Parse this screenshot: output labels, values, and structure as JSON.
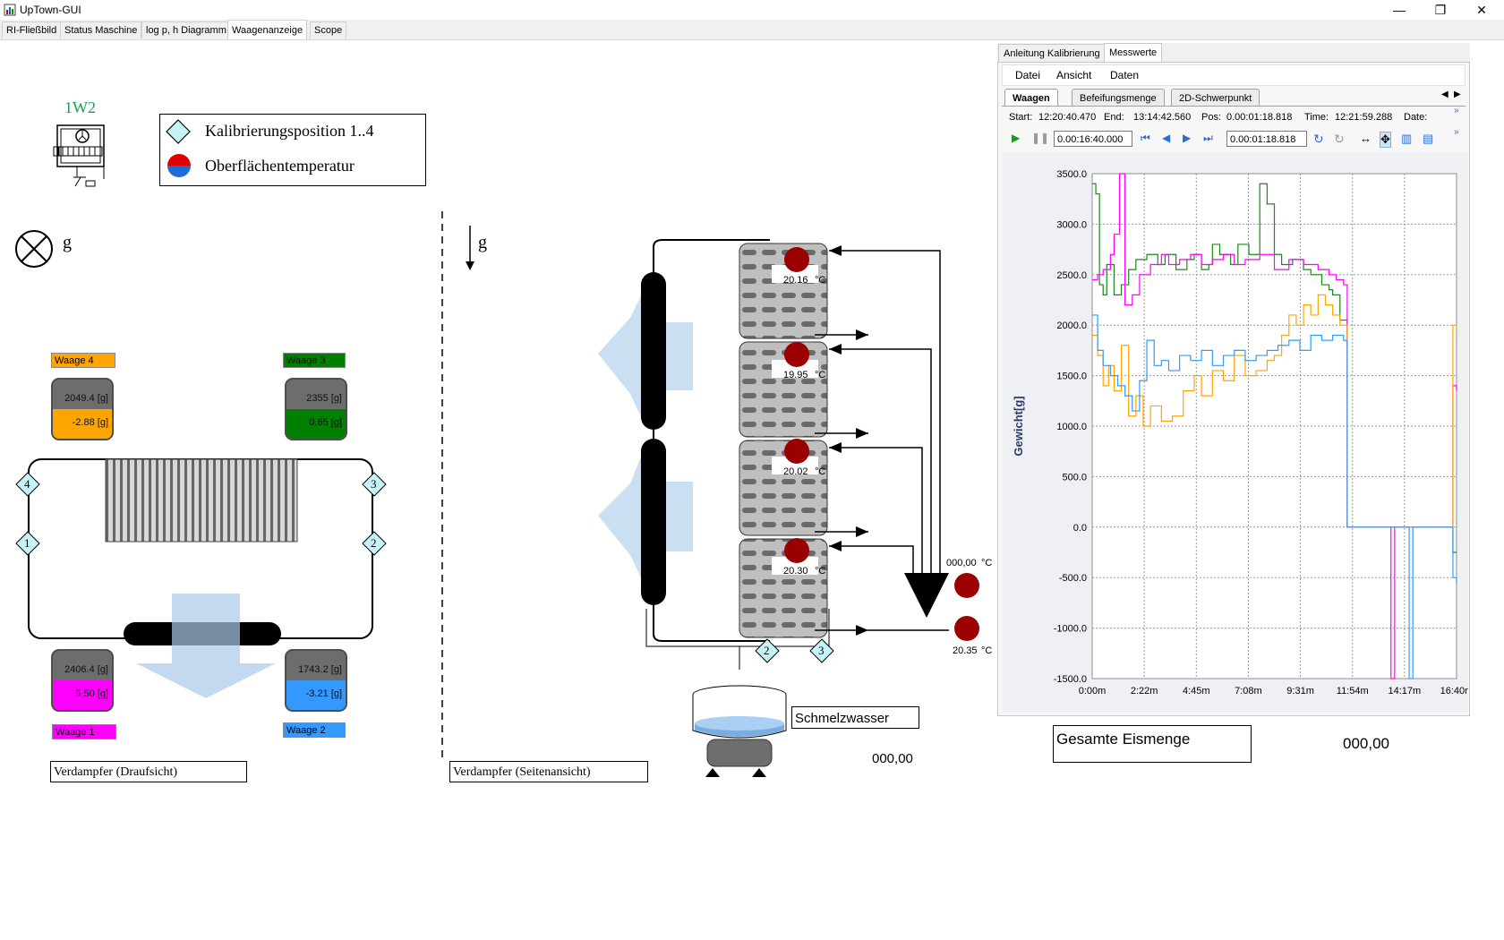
{
  "window": {
    "title": "UpTown-GUI",
    "minimize": "—",
    "maximize": "❐",
    "close": "✕"
  },
  "tabs": [
    {
      "label": "RI-Fließbild"
    },
    {
      "label": "Status Maschine"
    },
    {
      "label": "log p, h Diagramm"
    },
    {
      "label": "Waagenanzeige"
    },
    {
      "label": "Scope"
    }
  ],
  "active_tab": "Waagenanzeige",
  "device": {
    "label": "1W2"
  },
  "legend": {
    "calib": "Kalibrierungsposition 1..4",
    "surface_temp": "Oberflächentemperatur"
  },
  "gravity": {
    "label_left": "g",
    "label_right": "g"
  },
  "scales": [
    {
      "name": "Waage 4",
      "total": "2049.4 [g]",
      "delta": "-2.88 [g]",
      "color": "#ffa500"
    },
    {
      "name": "Waage 3",
      "total": "2355 [g]",
      "delta": "0.65 [g]",
      "color": "#008000"
    },
    {
      "name": "Waage 1",
      "total": "2406.4 [g]",
      "delta": "5.50 [g]",
      "color": "#ff00ff"
    },
    {
      "name": "Waage 2",
      "total": "1743.2 [g]",
      "delta": "-3.21 [g]",
      "color": "#3399ff"
    }
  ],
  "calib_points": [
    "1",
    "2",
    "3",
    "4"
  ],
  "side_calib_points": [
    "2",
    "3"
  ],
  "sensors": [
    {
      "value": "20.16",
      "unit": "°C"
    },
    {
      "value": "19.95",
      "unit": "°C"
    },
    {
      "value": "20.02",
      "unit": "°C"
    },
    {
      "value": "20.30",
      "unit": "°C"
    }
  ],
  "extra_sensors": [
    {
      "value": "000,00",
      "unit": "°C"
    },
    {
      "value": "20.35",
      "unit": "°C"
    }
  ],
  "views": {
    "top": "Verdampfer (Draufsicht)",
    "side": "Verdampfer (Seitenansicht)"
  },
  "meltwater": {
    "label": "Schmelzwasser",
    "value": "000,00"
  },
  "total_ice": {
    "label": "Gesamte Eismenge",
    "value": "000,00"
  },
  "right_panel": {
    "tabs": [
      "Anleitung Kalibrierung",
      "Messwerte"
    ],
    "active_tab": "Messwerte",
    "menu": [
      "Datei",
      "Ansicht",
      "Daten"
    ],
    "subtabs": [
      "Waagen",
      "Befeifungsmenge",
      "2D-Schwerpunkt"
    ],
    "info": {
      "start_label": "Start:",
      "start": "12:20:40.470",
      "end_label": "End:",
      "end": "13:14:42.560",
      "pos_label": "Pos:",
      "pos": "0.00:01:18.818",
      "time_label": "Time:",
      "time": "12:21:59.288",
      "date_label": "Date:"
    },
    "toolbar": {
      "duration": "0.00:16:40.000",
      "position": "0.00:01:18.818"
    }
  },
  "chart_data": {
    "type": "line",
    "title": "",
    "xlabel": "",
    "ylabel": "Gewicht[g]",
    "ylim": [
      -1500,
      3500
    ],
    "xlim": [
      0,
      1000
    ],
    "yticks": [
      "3500.0",
      "3000.0",
      "2500.0",
      "2000.0",
      "1500.0",
      "1000.0",
      "500.0",
      "0.0",
      "-500.0",
      "-1000.0",
      "-1500.0"
    ],
    "xticks": [
      "0:00m",
      "2:22m",
      "4:45m",
      "7:08m",
      "9:31m",
      "11:54m",
      "14:17m",
      "16:40m"
    ],
    "grid": true,
    "series": [
      {
        "color": "#1a8a1a",
        "x": [
          0,
          10,
          20,
          30,
          40,
          60,
          80,
          100,
          120,
          150,
          180,
          200,
          230,
          260,
          280,
          300,
          320,
          330,
          350,
          380,
          400,
          430,
          460,
          480,
          500,
          520,
          550,
          580,
          600,
          630,
          650,
          660,
          680,
          700,
          720,
          730,
          760,
          780,
          800,
          820,
          850,
          880,
          900,
          930,
          950,
          980,
          990,
          1000
        ],
        "y": [
          3400,
          3300,
          2400,
          2300,
          2600,
          2300,
          2400,
          2550,
          2650,
          2700,
          2600,
          2700,
          2550,
          2650,
          2700,
          2550,
          2600,
          2800,
          2700,
          2600,
          2800,
          2700,
          3400,
          3200,
          2700,
          2600,
          2650,
          2550,
          2500,
          2400,
          2350,
          2300,
          2050,
          0,
          0,
          0,
          0,
          0,
          0,
          0,
          0,
          0,
          0,
          0,
          0,
          0,
          -250,
          -250
        ]
      },
      {
        "color": "#ff00ff",
        "x": [
          0,
          15,
          30,
          50,
          60,
          75,
          90,
          110,
          130,
          160,
          190,
          210,
          240,
          270,
          300,
          330,
          360,
          390,
          420,
          460,
          500,
          540,
          580,
          620,
          650,
          670,
          690,
          700,
          720,
          750,
          780,
          810,
          820,
          830,
          850,
          880,
          900,
          930,
          950,
          970,
          980,
          990,
          1000
        ],
        "y": [
          2450,
          2500,
          2550,
          2700,
          2900,
          3500,
          2200,
          2300,
          2500,
          2600,
          2700,
          2600,
          2650,
          2700,
          2600,
          2650,
          2700,
          2600,
          2650,
          2700,
          2550,
          2650,
          2600,
          2550,
          2500,
          2450,
          2400,
          0,
          0,
          0,
          0,
          0,
          -1500,
          0,
          0,
          0,
          0,
          0,
          0,
          0,
          0,
          1400,
          1350
        ]
      },
      {
        "color": "#ffa500",
        "x": [
          0,
          15,
          30,
          45,
          60,
          80,
          100,
          120,
          140,
          160,
          190,
          220,
          250,
          280,
          300,
          330,
          360,
          390,
          420,
          450,
          480,
          500,
          520,
          540,
          560,
          580,
          600,
          620,
          640,
          660,
          680,
          700,
          720,
          750,
          780,
          810,
          840,
          870,
          900,
          930,
          960,
          980,
          990,
          1000
        ],
        "y": [
          1900,
          1700,
          1400,
          1600,
          1350,
          1800,
          1100,
          1300,
          1000,
          1200,
          1050,
          1100,
          1350,
          1500,
          1300,
          1550,
          1450,
          1700,
          1500,
          1550,
          1650,
          1700,
          1900,
          2100,
          2000,
          2200,
          2100,
          2300,
          2200,
          2100,
          2000,
          0,
          0,
          0,
          0,
          0,
          0,
          0,
          0,
          0,
          0,
          0,
          2000,
          1950
        ]
      },
      {
        "color": "#3399ff",
        "x": [
          0,
          15,
          30,
          50,
          70,
          90,
          110,
          130,
          150,
          170,
          190,
          210,
          240,
          270,
          300,
          330,
          360,
          390,
          420,
          450,
          480,
          510,
          540,
          570,
          600,
          630,
          660,
          690,
          700,
          720,
          750,
          780,
          800,
          820,
          840,
          860,
          870,
          880,
          900,
          930,
          960,
          990,
          1000
        ],
        "y": [
          2100,
          1750,
          1600,
          1500,
          1400,
          1300,
          1150,
          1450,
          1850,
          1600,
          1650,
          1550,
          1700,
          1650,
          1750,
          1600,
          1700,
          1750,
          1650,
          1700,
          1750,
          1800,
          1850,
          1750,
          1900,
          1850,
          1900,
          1850,
          0,
          0,
          0,
          0,
          0,
          0,
          0,
          0,
          -1500,
          0,
          0,
          0,
          0,
          -500,
          -550
        ]
      }
    ]
  }
}
